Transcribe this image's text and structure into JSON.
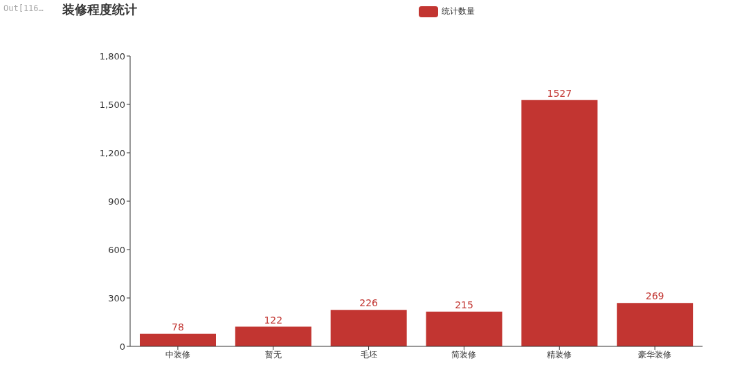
{
  "chart_data": {
    "type": "bar",
    "title": "装修程度统计",
    "annotations": [
      "Out[116…"
    ],
    "categories": [
      "中装修",
      "暂无",
      "毛坯",
      "简装修",
      "精装修",
      "豪华装修"
    ],
    "series": [
      {
        "name": "统计数量",
        "color": "#c23531",
        "values": [
          78,
          122,
          226,
          215,
          1527,
          269
        ]
      }
    ],
    "ylim": [
      0,
      1800
    ],
    "yticks": [
      0,
      300,
      600,
      900,
      {
        "value": 1200,
        "label": "1,200"
      },
      {
        "value": 1500,
        "label": "1,500"
      },
      {
        "value": 1800,
        "label": "1,800"
      }
    ],
    "data_labels": true,
    "grid": false,
    "legend": "top"
  }
}
